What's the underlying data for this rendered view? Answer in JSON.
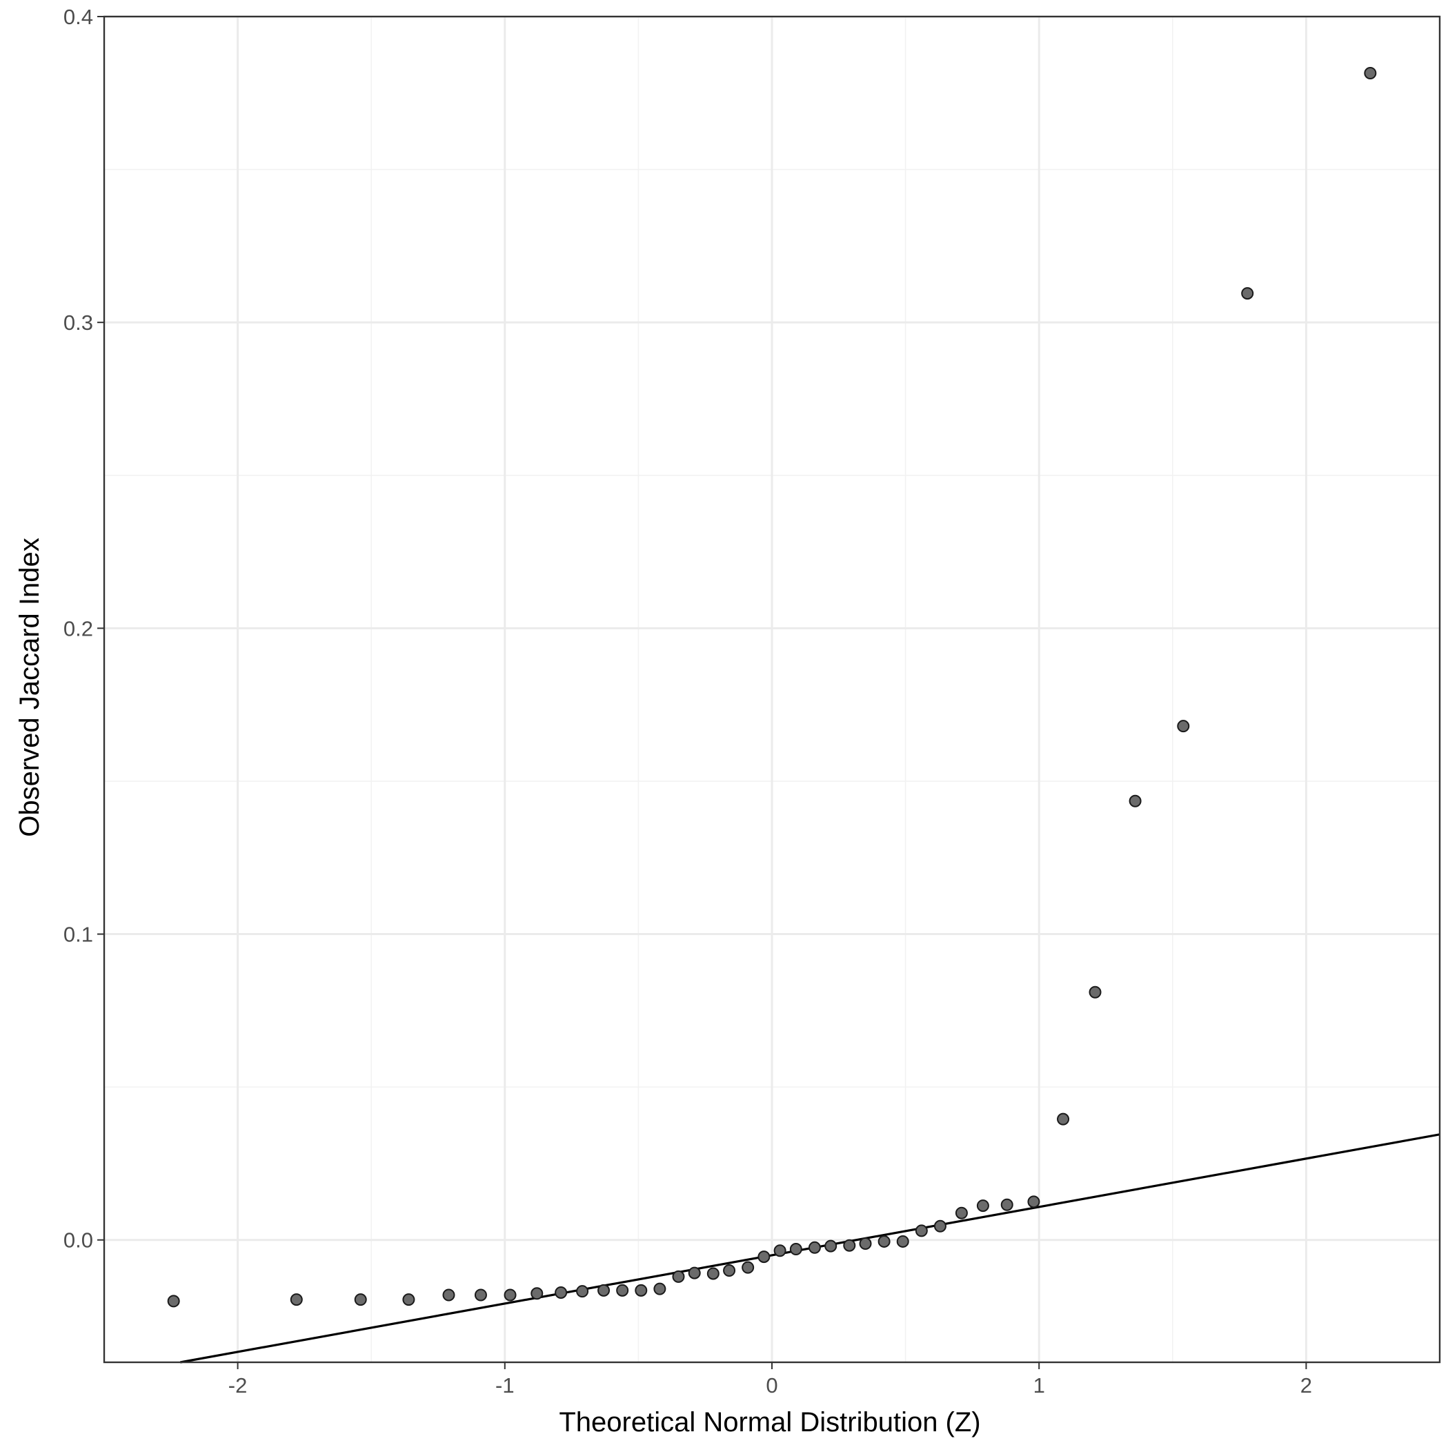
{
  "chart_data": {
    "type": "scatter",
    "title": "",
    "xlabel": "Theoretical Normal Distribution (Z)",
    "ylabel": "Observed Jaccard Index",
    "xlim": [
      -2.5,
      2.5
    ],
    "ylim": [
      -0.04,
      0.4
    ],
    "x_ticks": [
      {
        "value": -2,
        "label": "-2"
      },
      {
        "value": -1,
        "label": "-1"
      },
      {
        "value": 0,
        "label": "0"
      },
      {
        "value": 1,
        "label": "1"
      },
      {
        "value": 2,
        "label": "2"
      }
    ],
    "y_ticks": [
      {
        "value": 0.0,
        "label": "0.0"
      },
      {
        "value": 0.1,
        "label": "0.1"
      },
      {
        "value": 0.2,
        "label": "0.2"
      },
      {
        "value": 0.3,
        "label": "0.3"
      },
      {
        "value": 0.4,
        "label": "0.4"
      }
    ],
    "x_minor": [
      -1.5,
      -0.5,
      0.5,
      1.5
    ],
    "y_minor": [
      0.05,
      0.15,
      0.25,
      0.35
    ],
    "grid": true,
    "legend": "none",
    "reference_line": {
      "intercept": -0.005,
      "slope": 0.0158
    },
    "points": [
      {
        "x": -2.24,
        "y": -0.02
      },
      {
        "x": -1.78,
        "y": -0.0195
      },
      {
        "x": -1.54,
        "y": -0.0195
      },
      {
        "x": -1.36,
        "y": -0.0195
      },
      {
        "x": -1.21,
        "y": -0.018
      },
      {
        "x": -1.09,
        "y": -0.018
      },
      {
        "x": -0.98,
        "y": -0.018
      },
      {
        "x": -0.88,
        "y": -0.0175
      },
      {
        "x": -0.79,
        "y": -0.0172
      },
      {
        "x": -0.71,
        "y": -0.0168
      },
      {
        "x": -0.63,
        "y": -0.0165
      },
      {
        "x": -0.56,
        "y": -0.0165
      },
      {
        "x": -0.49,
        "y": -0.0165
      },
      {
        "x": -0.42,
        "y": -0.016
      },
      {
        "x": -0.35,
        "y": -0.012
      },
      {
        "x": -0.29,
        "y": -0.0108
      },
      {
        "x": -0.22,
        "y": -0.011
      },
      {
        "x": -0.16,
        "y": -0.01
      },
      {
        "x": -0.09,
        "y": -0.009
      },
      {
        "x": -0.03,
        "y": -0.0055
      },
      {
        "x": 0.03,
        "y": -0.0035
      },
      {
        "x": 0.09,
        "y": -0.003
      },
      {
        "x": 0.16,
        "y": -0.0025
      },
      {
        "x": 0.22,
        "y": -0.002
      },
      {
        "x": 0.29,
        "y": -0.0018
      },
      {
        "x": 0.35,
        "y": -0.0012
      },
      {
        "x": 0.42,
        "y": -0.0005
      },
      {
        "x": 0.49,
        "y": -0.0005
      },
      {
        "x": 0.56,
        "y": 0.003
      },
      {
        "x": 0.63,
        "y": 0.0045
      },
      {
        "x": 0.71,
        "y": 0.0088
      },
      {
        "x": 0.79,
        "y": 0.0112
      },
      {
        "x": 0.88,
        "y": 0.0115
      },
      {
        "x": 0.98,
        "y": 0.0125
      },
      {
        "x": 1.09,
        "y": 0.0395
      },
      {
        "x": 1.21,
        "y": 0.081
      },
      {
        "x": 1.36,
        "y": 0.1435
      },
      {
        "x": 1.54,
        "y": 0.168
      },
      {
        "x": 1.78,
        "y": 0.3095
      },
      {
        "x": 2.24,
        "y": 0.3815
      }
    ]
  }
}
